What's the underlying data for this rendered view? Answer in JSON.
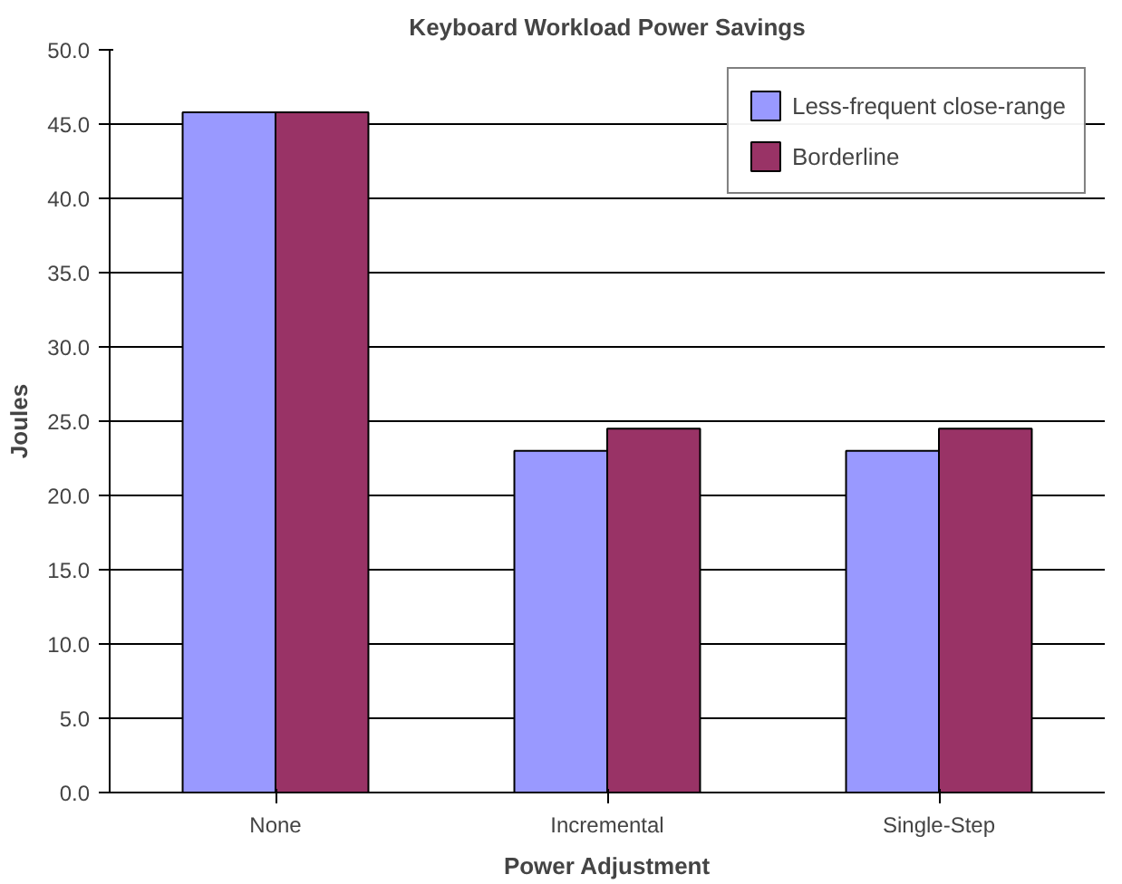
{
  "chart_data": {
    "type": "bar",
    "title": "Keyboard Workload Power Savings",
    "xlabel": "Power Adjustment",
    "ylabel": "Joules",
    "categories": [
      "None",
      "Incremental",
      "Single-Step"
    ],
    "series": [
      {
        "name": "Less-frequent close-range",
        "color": "#9999ff",
        "values": [
          45.8,
          23.0,
          23.0
        ]
      },
      {
        "name": "Borderline",
        "color": "#993366",
        "values": [
          45.8,
          24.5,
          24.5
        ]
      }
    ],
    "ylim": [
      0,
      50
    ],
    "yticks": [
      {
        "value": 0,
        "label": "0.0"
      },
      {
        "value": 5,
        "label": "5.0"
      },
      {
        "value": 10,
        "label": "10.0"
      },
      {
        "value": 15,
        "label": "15.0"
      },
      {
        "value": 20,
        "label": "20.0"
      },
      {
        "value": 25,
        "label": "25.0"
      },
      {
        "value": 30,
        "label": "30.0"
      },
      {
        "value": 35,
        "label": "35.0"
      },
      {
        "value": 40,
        "label": "40.0"
      },
      {
        "value": 45,
        "label": "45.0"
      },
      {
        "value": 50,
        "label": "50.0"
      }
    ],
    "grid": "y",
    "legend": "top right"
  }
}
